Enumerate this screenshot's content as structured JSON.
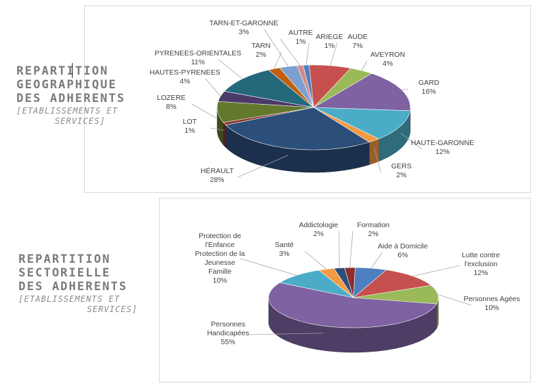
{
  "left_titles": [
    {
      "lines": [
        "REPARTITION",
        "GEOGRAPHIQUE",
        "DES ADHERENTS"
      ],
      "sub": [
        "[ETABLISSEMENTS ET",
        "SERVICES]"
      ]
    },
    {
      "lines": [
        "REPARTITION",
        "SECTORIELLE",
        "DES ADHERENTS"
      ],
      "sub": [
        "[ETABLISSEMENTS ET",
        "SERVICES]"
      ]
    }
  ],
  "chart_data": [
    {
      "type": "pie",
      "title": "",
      "labels": [
        "ARIEGE",
        "AUDE",
        "AVEYRON",
        "GARD",
        "HAUTE-GARONNE",
        "GERS",
        "HÉRAULT",
        "LOT",
        "LOZERE",
        "HAUTES-PYRENEES",
        "PYRENEES-ORIENTALES",
        "TARN",
        "TARN-ET-GARONNE",
        "AUTRE"
      ],
      "values": [
        1,
        7,
        4,
        16,
        12,
        2,
        28,
        1,
        8,
        4,
        11,
        2,
        3,
        1
      ],
      "value_labels": [
        "1%",
        "7%",
        "4%",
        "16%",
        "12%",
        "2%",
        "28%",
        "1%",
        "8%",
        "4%",
        "11%",
        "2%",
        "3%",
        "1%"
      ],
      "colors": [
        "#4e7fc0",
        "#c5504d",
        "#9ab959",
        "#7e62a1",
        "#4aacc6",
        "#f39a44",
        "#2c4e7a",
        "#8b2e2c",
        "#62782d",
        "#4b3a6a",
        "#24687c",
        "#c0600f",
        "#7f9fd0",
        "#d28b89"
      ],
      "style": "3d"
    },
    {
      "type": "pie",
      "title": "",
      "labels": [
        [
          "Aide à Domicile"
        ],
        [
          "Lutte contre",
          "l'exclusion"
        ],
        [
          "Personnes Agées"
        ],
        [
          "Personnes",
          "Handicapées"
        ],
        [
          "Protection de",
          "l'Enfance",
          "Protection de la",
          "Jeunesse",
          "Famille"
        ],
        [
          "Santé"
        ],
        [
          "Addictologie"
        ],
        [
          "Formation"
        ]
      ],
      "values": [
        6,
        12,
        10,
        55,
        10,
        3,
        2,
        2
      ],
      "value_labels": [
        "6%",
        "12%",
        "10%",
        "55%",
        "10%",
        "3%",
        "2%",
        "2%"
      ],
      "colors": [
        "#4e7fc0",
        "#c5504d",
        "#9ab959",
        "#7e62a1",
        "#4aacc6",
        "#f39a44",
        "#2c4e7a",
        "#8b2e2c"
      ],
      "style": "3d"
    }
  ]
}
